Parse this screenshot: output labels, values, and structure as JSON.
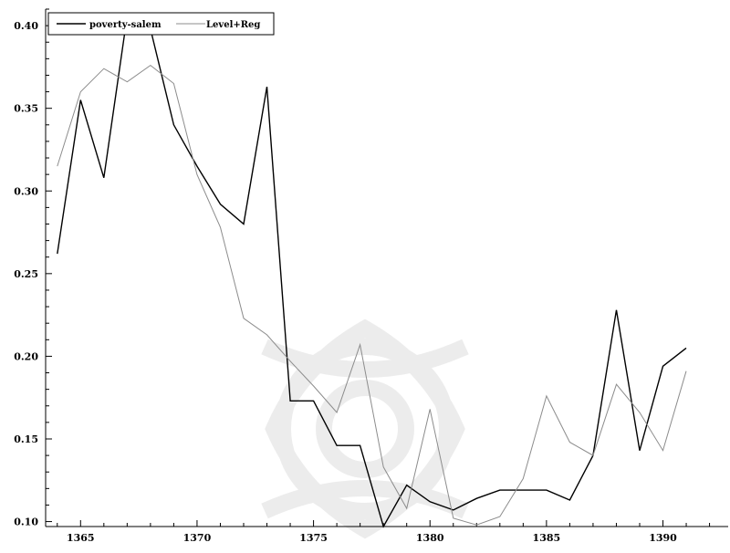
{
  "chart_data": {
    "type": "line",
    "title": "",
    "xlabel": "",
    "ylabel": "",
    "xlim": [
      1363.5,
      1392.8
    ],
    "ylim": [
      0.097,
      0.41
    ],
    "xticks": [
      1365,
      1370,
      1375,
      1380,
      1385,
      1390
    ],
    "yticks": [
      0.1,
      0.15,
      0.2,
      0.25,
      0.3,
      0.35,
      0.4
    ],
    "xtick_labels": [
      "1365",
      "1370",
      "1375",
      "1380",
      "1385",
      "1390"
    ],
    "ytick_labels": [
      "0.10",
      "0.15",
      "0.20",
      "0.25",
      "0.30",
      "0.35",
      "0.40"
    ],
    "grid": false,
    "legend": "top-left",
    "x": [
      1364,
      1365,
      1366,
      1367,
      1368,
      1369,
      1370,
      1371,
      1372,
      1373,
      1374,
      1375,
      1376,
      1377,
      1378,
      1379,
      1380,
      1381,
      1382,
      1383,
      1384,
      1385,
      1386,
      1387,
      1388,
      1389,
      1390,
      1391
    ],
    "series": [
      {
        "name": "poverty-salem",
        "color": "#000000",
        "values": [
          0.262,
          0.355,
          0.308,
          0.406,
          0.398,
          0.34,
          0.315,
          0.292,
          0.28,
          0.363,
          0.173,
          0.173,
          0.146,
          0.146,
          0.097,
          0.122,
          0.112,
          0.107,
          0.114,
          0.119,
          0.119,
          0.119,
          0.113,
          0.14,
          0.228,
          0.143,
          0.194,
          0.205
        ]
      },
      {
        "name": "Level+Reg",
        "color": "#8c8c8c",
        "values": [
          0.315,
          0.36,
          0.374,
          0.366,
          0.376,
          0.365,
          0.31,
          0.278,
          0.223,
          0.213,
          0.197,
          0.182,
          0.166,
          0.207,
          0.133,
          0.108,
          0.168,
          0.102,
          0.098,
          0.103,
          0.126,
          0.176,
          0.148,
          0.14,
          0.183,
          0.166,
          0.143,
          0.191
        ]
      }
    ]
  }
}
